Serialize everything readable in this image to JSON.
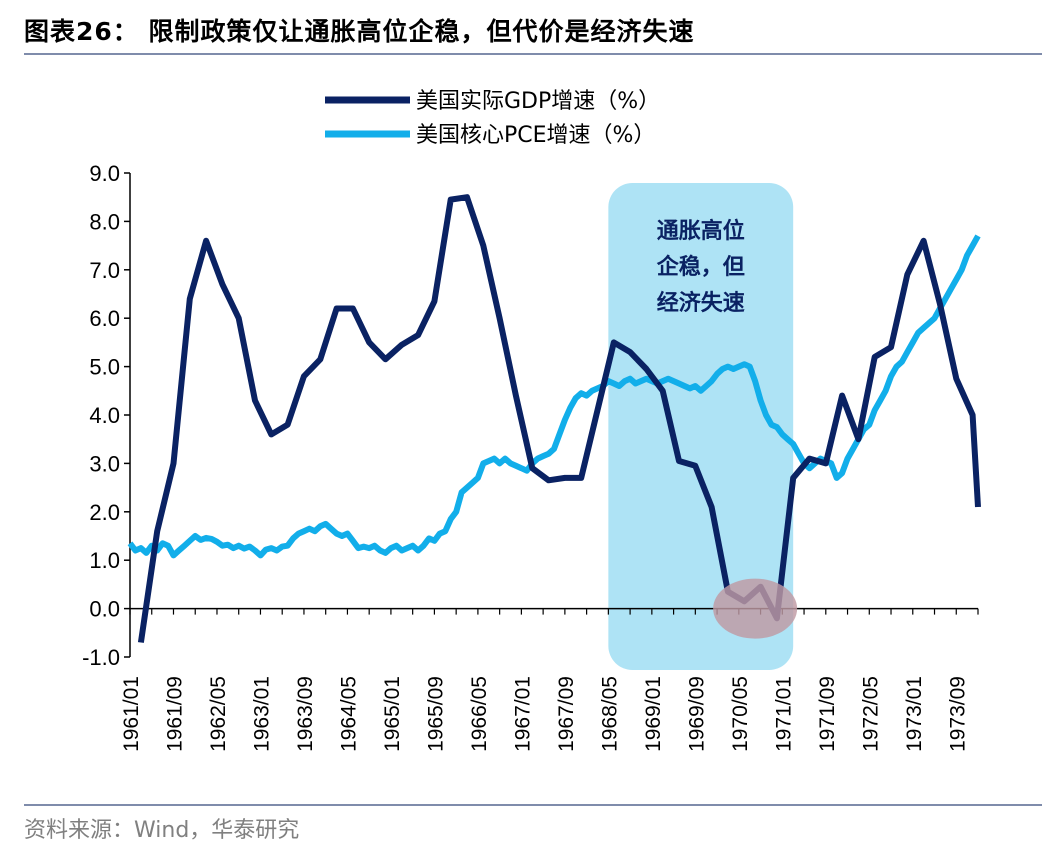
{
  "title": "图表26：  限制政策仅让通胀高位企稳，但代价是经济失速",
  "source": "资料来源：Wind，华泰研究",
  "chart_data": {
    "type": "line",
    "legend": "top-center",
    "grid": false,
    "ylim": [
      -1.0,
      9.0
    ],
    "y_ticks": [
      "-1.0",
      "0.0",
      "1.0",
      "2.0",
      "3.0",
      "4.0",
      "5.0",
      "6.0",
      "7.0",
      "8.0",
      "9.0"
    ],
    "x_ticks": [
      "1961/01",
      "1961/09",
      "1962/05",
      "1963/01",
      "1963/09",
      "1964/05",
      "1965/01",
      "1965/09",
      "1966/05",
      "1967/01",
      "1967/09",
      "1968/05",
      "1969/01",
      "1969/09",
      "1970/05",
      "1971/01",
      "1971/09",
      "1972/05",
      "1973/01",
      "1973/09"
    ],
    "x_start": "1961/01",
    "x_end": "1974/01",
    "annotation": {
      "lines": [
        "通胀高位",
        "企稳，但",
        "经济失速"
      ],
      "box_from": "1968/05",
      "box_to": "1971/03",
      "box_color": "#aee3f5",
      "text_color": "#0a2263"
    },
    "highlight": {
      "at": "1970/08",
      "value": 0.0,
      "color": "#c09aa4"
    },
    "series": [
      {
        "name": "美国实际GDP增速（%）",
        "color": "#0a2263",
        "points": [
          [
            "1961/03",
            -0.7
          ],
          [
            "1961/06",
            1.6
          ],
          [
            "1961/09",
            3.0
          ],
          [
            "1961/12",
            6.4
          ],
          [
            "1962/03",
            7.6
          ],
          [
            "1962/06",
            6.7
          ],
          [
            "1962/09",
            6.0
          ],
          [
            "1962/12",
            4.3
          ],
          [
            "1963/03",
            3.6
          ],
          [
            "1963/06",
            3.8
          ],
          [
            "1963/09",
            4.8
          ],
          [
            "1963/12",
            5.15
          ],
          [
            "1964/03",
            6.2
          ],
          [
            "1964/06",
            6.2
          ],
          [
            "1964/09",
            5.5
          ],
          [
            "1964/12",
            5.15
          ],
          [
            "1965/03",
            5.45
          ],
          [
            "1965/06",
            5.65
          ],
          [
            "1965/09",
            6.35
          ],
          [
            "1965/12",
            8.45
          ],
          [
            "1966/03",
            8.5
          ],
          [
            "1966/06",
            7.5
          ],
          [
            "1966/09",
            6.0
          ],
          [
            "1966/12",
            4.4
          ],
          [
            "1967/03",
            2.9
          ],
          [
            "1967/06",
            2.65
          ],
          [
            "1967/09",
            2.7
          ],
          [
            "1967/12",
            2.7
          ],
          [
            "1968/03",
            4.1
          ],
          [
            "1968/06",
            5.5
          ],
          [
            "1968/09",
            5.3
          ],
          [
            "1968/12",
            4.95
          ],
          [
            "1969/03",
            4.5
          ],
          [
            "1969/06",
            3.05
          ],
          [
            "1969/09",
            2.95
          ],
          [
            "1969/12",
            2.1
          ],
          [
            "1970/03",
            0.35
          ],
          [
            "1970/06",
            0.15
          ],
          [
            "1970/09",
            0.45
          ],
          [
            "1970/12",
            -0.2
          ],
          [
            "1971/03",
            2.7
          ],
          [
            "1971/06",
            3.1
          ],
          [
            "1971/09",
            3.0
          ],
          [
            "1971/12",
            4.4
          ],
          [
            "1972/03",
            3.5
          ],
          [
            "1972/06",
            5.2
          ],
          [
            "1972/09",
            5.4
          ],
          [
            "1972/12",
            6.9
          ],
          [
            "1973/03",
            7.6
          ],
          [
            "1973/06",
            6.3
          ],
          [
            "1973/09",
            4.75
          ],
          [
            "1973/12",
            4.0
          ],
          [
            "1974/01",
            2.1
          ]
        ]
      },
      {
        "name": "美国核心PCE增速（%）",
        "color": "#12aeea",
        "points": [
          [
            "1961/01",
            1.35
          ],
          [
            "1961/02",
            1.2
          ],
          [
            "1961/03",
            1.25
          ],
          [
            "1961/04",
            1.15
          ],
          [
            "1961/05",
            1.3
          ],
          [
            "1961/06",
            1.2
          ],
          [
            "1961/07",
            1.35
          ],
          [
            "1961/08",
            1.3
          ],
          [
            "1961/09",
            1.1
          ],
          [
            "1961/10",
            1.2
          ],
          [
            "1961/11",
            1.3
          ],
          [
            "1961/12",
            1.4
          ],
          [
            "1962/01",
            1.5
          ],
          [
            "1962/02",
            1.42
          ],
          [
            "1962/03",
            1.46
          ],
          [
            "1962/04",
            1.44
          ],
          [
            "1962/05",
            1.38
          ],
          [
            "1962/06",
            1.3
          ],
          [
            "1962/07",
            1.32
          ],
          [
            "1962/08",
            1.25
          ],
          [
            "1962/09",
            1.3
          ],
          [
            "1962/10",
            1.24
          ],
          [
            "1962/11",
            1.28
          ],
          [
            "1962/12",
            1.2
          ],
          [
            "1963/01",
            1.1
          ],
          [
            "1963/02",
            1.22
          ],
          [
            "1963/03",
            1.25
          ],
          [
            "1963/04",
            1.2
          ],
          [
            "1963/05",
            1.28
          ],
          [
            "1963/06",
            1.3
          ],
          [
            "1963/07",
            1.45
          ],
          [
            "1963/08",
            1.55
          ],
          [
            "1963/09",
            1.6
          ],
          [
            "1963/10",
            1.65
          ],
          [
            "1963/11",
            1.6
          ],
          [
            "1963/12",
            1.7
          ],
          [
            "1964/01",
            1.75
          ],
          [
            "1964/02",
            1.65
          ],
          [
            "1964/03",
            1.55
          ],
          [
            "1964/04",
            1.5
          ],
          [
            "1964/05",
            1.55
          ],
          [
            "1964/06",
            1.4
          ],
          [
            "1964/07",
            1.25
          ],
          [
            "1964/08",
            1.28
          ],
          [
            "1964/09",
            1.25
          ],
          [
            "1964/10",
            1.3
          ],
          [
            "1964/11",
            1.2
          ],
          [
            "1964/12",
            1.15
          ],
          [
            "1965/01",
            1.25
          ],
          [
            "1965/02",
            1.3
          ],
          [
            "1965/03",
            1.2
          ],
          [
            "1965/04",
            1.25
          ],
          [
            "1965/05",
            1.3
          ],
          [
            "1965/06",
            1.2
          ],
          [
            "1965/07",
            1.3
          ],
          [
            "1965/08",
            1.45
          ],
          [
            "1965/09",
            1.4
          ],
          [
            "1965/10",
            1.55
          ],
          [
            "1965/11",
            1.6
          ],
          [
            "1965/12",
            1.85
          ],
          [
            "1966/01",
            2.0
          ],
          [
            "1966/02",
            2.4
          ],
          [
            "1966/03",
            2.5
          ],
          [
            "1966/04",
            2.6
          ],
          [
            "1966/05",
            2.7
          ],
          [
            "1966/06",
            3.0
          ],
          [
            "1966/07",
            3.05
          ],
          [
            "1966/08",
            3.1
          ],
          [
            "1966/09",
            3.0
          ],
          [
            "1966/10",
            3.1
          ],
          [
            "1966/11",
            3.0
          ],
          [
            "1966/12",
            2.95
          ],
          [
            "1967/01",
            2.9
          ],
          [
            "1967/02",
            2.85
          ],
          [
            "1967/03",
            3.0
          ],
          [
            "1967/04",
            3.1
          ],
          [
            "1967/05",
            3.15
          ],
          [
            "1967/06",
            3.2
          ],
          [
            "1967/07",
            3.3
          ],
          [
            "1967/08",
            3.6
          ],
          [
            "1967/09",
            3.9
          ],
          [
            "1967/10",
            4.15
          ],
          [
            "1967/11",
            4.35
          ],
          [
            "1967/12",
            4.45
          ],
          [
            "1968/01",
            4.4
          ],
          [
            "1968/02",
            4.5
          ],
          [
            "1968/03",
            4.55
          ],
          [
            "1968/04",
            4.6
          ],
          [
            "1968/05",
            4.7
          ],
          [
            "1968/06",
            4.65
          ],
          [
            "1968/07",
            4.6
          ],
          [
            "1968/08",
            4.7
          ],
          [
            "1968/09",
            4.75
          ],
          [
            "1968/10",
            4.65
          ],
          [
            "1968/11",
            4.7
          ],
          [
            "1968/12",
            4.75
          ],
          [
            "1969/01",
            4.7
          ],
          [
            "1969/02",
            4.65
          ],
          [
            "1969/03",
            4.7
          ],
          [
            "1969/04",
            4.75
          ],
          [
            "1969/05",
            4.7
          ],
          [
            "1969/06",
            4.65
          ],
          [
            "1969/07",
            4.6
          ],
          [
            "1969/08",
            4.55
          ],
          [
            "1969/09",
            4.6
          ],
          [
            "1969/10",
            4.5
          ],
          [
            "1969/11",
            4.6
          ],
          [
            "1969/12",
            4.7
          ],
          [
            "1970/01",
            4.85
          ],
          [
            "1970/02",
            4.95
          ],
          [
            "1970/03",
            5.0
          ],
          [
            "1970/04",
            4.95
          ],
          [
            "1970/05",
            5.0
          ],
          [
            "1970/06",
            5.05
          ],
          [
            "1970/07",
            5.0
          ],
          [
            "1970/08",
            4.7
          ],
          [
            "1970/09",
            4.3
          ],
          [
            "1970/10",
            4.0
          ],
          [
            "1970/11",
            3.8
          ],
          [
            "1970/12",
            3.75
          ],
          [
            "1971/01",
            3.6
          ],
          [
            "1971/02",
            3.5
          ],
          [
            "1971/03",
            3.4
          ],
          [
            "1971/04",
            3.2
          ],
          [
            "1971/05",
            3.0
          ],
          [
            "1971/06",
            2.9
          ],
          [
            "1971/07",
            3.0
          ],
          [
            "1971/08",
            3.1
          ],
          [
            "1971/09",
            3.05
          ],
          [
            "1971/10",
            3.0
          ],
          [
            "1971/11",
            2.7
          ],
          [
            "1971/12",
            2.8
          ],
          [
            "1972/01",
            3.1
          ],
          [
            "1972/02",
            3.3
          ],
          [
            "1972/03",
            3.5
          ],
          [
            "1972/04",
            3.7
          ],
          [
            "1972/05",
            3.8
          ],
          [
            "1972/06",
            4.1
          ],
          [
            "1972/07",
            4.3
          ],
          [
            "1972/08",
            4.5
          ],
          [
            "1972/09",
            4.8
          ],
          [
            "1972/10",
            5.0
          ],
          [
            "1972/11",
            5.1
          ],
          [
            "1972/12",
            5.3
          ],
          [
            "1973/01",
            5.5
          ],
          [
            "1973/02",
            5.7
          ],
          [
            "1973/03",
            5.8
          ],
          [
            "1973/04",
            5.9
          ],
          [
            "1973/05",
            6.0
          ],
          [
            "1973/06",
            6.2
          ],
          [
            "1973/07",
            6.4
          ],
          [
            "1973/08",
            6.6
          ],
          [
            "1973/09",
            6.8
          ],
          [
            "1973/10",
            7.0
          ],
          [
            "1973/11",
            7.3
          ],
          [
            "1973/12",
            7.5
          ],
          [
            "1974/01",
            7.7
          ]
        ]
      }
    ]
  }
}
